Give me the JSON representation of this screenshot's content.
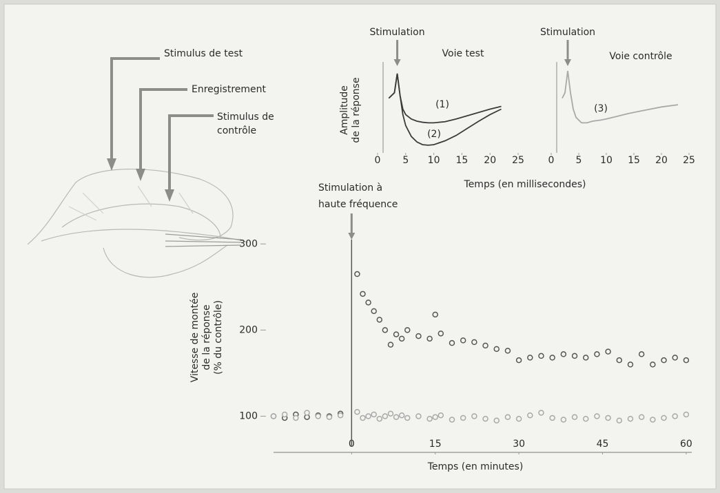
{
  "diagram": {
    "labels": [
      "Stimulus de test",
      "Enregistrement",
      [
        "Stimulus de",
        "contrôle"
      ]
    ]
  },
  "chart_data": [
    {
      "type": "line",
      "annotation": {
        "text": "Stimulation",
        "x": 3.5
      },
      "subtitle": "Voie test",
      "ylabel": [
        "Amplitude",
        "de la réponse"
      ],
      "xlabel": "Temps (en millisecondes)",
      "x": [
        2,
        3,
        3.5,
        4,
        4.5,
        5,
        6,
        7,
        8,
        9,
        10,
        12,
        14,
        16,
        18,
        20,
        22
      ],
      "series": [
        {
          "name": "(1)",
          "color": "#3a3a3a",
          "values": [
            0,
            0.1,
            0.45,
            0.05,
            -0.2,
            -0.3,
            -0.38,
            -0.42,
            -0.44,
            -0.45,
            -0.45,
            -0.43,
            -0.38,
            -0.32,
            -0.26,
            -0.2,
            -0.15
          ]
        },
        {
          "name": "(2)",
          "color": "#3a3a3a",
          "values": [
            0,
            0.1,
            0.45,
            0.05,
            -0.3,
            -0.5,
            -0.7,
            -0.8,
            -0.85,
            -0.86,
            -0.85,
            -0.78,
            -0.68,
            -0.55,
            -0.42,
            -0.3,
            -0.2
          ]
        }
      ],
      "xlim": [
        0,
        25
      ],
      "xticks": [
        0,
        5,
        10,
        15,
        20,
        25
      ],
      "ylim": [
        -1,
        0.6
      ]
    },
    {
      "type": "line",
      "annotation": {
        "text": "Stimulation",
        "x": 3
      },
      "subtitle": "Voie contrôle",
      "x": [
        2,
        2.5,
        3,
        3.5,
        4,
        4.5,
        5.5,
        6.5,
        7.5,
        9,
        10,
        12,
        14,
        16,
        18,
        20,
        23
      ],
      "series": [
        {
          "name": "(3)",
          "color": "#a8a8a8",
          "values": [
            0,
            0.1,
            0.5,
            0.1,
            -0.2,
            -0.35,
            -0.45,
            -0.45,
            -0.42,
            -0.4,
            -0.38,
            -0.33,
            -0.28,
            -0.24,
            -0.2,
            -0.16,
            -0.12
          ]
        }
      ],
      "xlim": [
        0,
        25
      ],
      "xticks": [
        0,
        5,
        10,
        15,
        20,
        25
      ],
      "ylim": [
        -1,
        0.6
      ]
    },
    {
      "type": "scatter",
      "annotation": {
        "text": [
          "Stimulation à",
          "haute fréquence"
        ],
        "x": 0
      },
      "ylabel": [
        "Vitesse de montée",
        "de la réponse",
        "(% du contrôle)"
      ],
      "xlabel": "Temps (en minutes)",
      "x": [
        -14,
        -12,
        -10,
        -8,
        -6,
        -4,
        -2,
        1,
        2,
        3,
        4,
        5,
        6,
        7,
        8,
        9,
        10,
        12,
        14,
        15,
        16,
        18,
        20,
        22,
        24,
        26,
        28,
        30,
        32,
        34,
        36,
        38,
        40,
        42,
        44,
        46,
        48,
        50,
        52,
        54,
        56,
        58,
        60
      ],
      "series": [
        {
          "color": "#555555",
          "values": [
            100,
            98,
            102,
            99,
            101,
            100,
            103,
            265,
            242,
            232,
            222,
            212,
            200,
            183,
            195,
            190,
            200,
            193,
            190,
            218,
            196,
            185,
            188,
            186,
            182,
            178,
            176,
            165,
            168,
            170,
            168,
            172,
            170,
            168,
            172,
            175,
            165,
            160,
            172,
            160,
            165,
            168,
            165
          ]
        },
        {
          "color": "#a8a8a8",
          "values": [
            100,
            102,
            98,
            104,
            100,
            99,
            101,
            105,
            98,
            100,
            102,
            97,
            100,
            103,
            99,
            101,
            98,
            100,
            97,
            99,
            101,
            96,
            98,
            100,
            97,
            95,
            99,
            97,
            101,
            104,
            98,
            96,
            99,
            97,
            100,
            98,
            95,
            97,
            99,
            96,
            98,
            100,
            102
          ]
        }
      ],
      "xlim": [
        -14,
        61
      ],
      "xticks": [
        0,
        15,
        30,
        45,
        60
      ],
      "ylim": [
        58,
        305
      ],
      "yticks": [
        100,
        200,
        300
      ]
    }
  ]
}
